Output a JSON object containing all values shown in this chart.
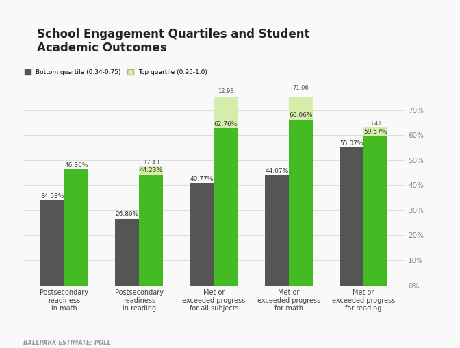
{
  "title": "School Engagement Quartiles and Student\nAcademic Outcomes",
  "categories": [
    "Postsecondary\nreadiness\nin math",
    "Postsecondary\nreadiness\nin reading",
    "Met or\nexceeded progress\nfor all subjects",
    "Met or\nexceeded progress\nfor math",
    "Met or\nexceeded progress\nfor reading"
  ],
  "bottom_quartile_values": [
    34.03,
    26.8,
    40.77,
    44.07,
    55.07
  ],
  "top_quartile_values": [
    46.36,
    44.23,
    62.76,
    66.06,
    59.57
  ],
  "ghost_bar_values": [
    null,
    47.43,
    75.74,
    77.06,
    62.98
  ],
  "extra_labels": [
    null,
    "17.43",
    "12.98",
    "71.06",
    "3.41"
  ],
  "bar_color_dark": "#555555",
  "bar_color_green": "#44bb22",
  "bar_color_light_green": "#d4edaa",
  "legend_label_1": "Bottom quartile (0.34-0.75)",
  "legend_label_2": "Top quartile (0.95-1.0)",
  "ylim": [
    0,
    75
  ],
  "yticks": [
    0,
    10,
    20,
    30,
    40,
    50,
    60,
    70
  ],
  "ytick_labels": [
    "0%",
    "10%",
    "20%",
    "30%",
    "40%",
    "50%",
    "60%",
    "70%"
  ],
  "source_text": "BALLPARK ESTIMATE: POLL",
  "background_color": "#f9f9f9",
  "title_fontsize": 12,
  "label_fontsize": 7,
  "bar_label_fontsize": 6.5
}
